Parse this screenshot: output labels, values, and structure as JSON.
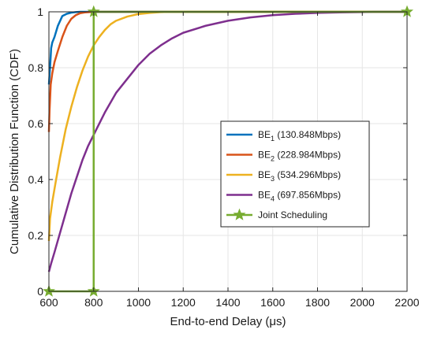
{
  "chart_data": {
    "type": "line",
    "xlabel": "End-to-end Delay (μs)",
    "ylabel": "Cumulative Distribution Function (CDF)",
    "xlim": [
      600,
      2200
    ],
    "ylim": [
      0,
      1
    ],
    "xticks": [
      "600",
      "800",
      "1000",
      "1200",
      "1400",
      "1600",
      "1800",
      "2000",
      "2200"
    ],
    "yticks": [
      "0",
      "0.2",
      "0.4",
      "0.6",
      "0.8",
      "1"
    ],
    "grid": true,
    "legend_position": "center-right",
    "series": [
      {
        "name": "BE1",
        "name_base": "BE",
        "name_sub": "1",
        "name_rate": "(130.848Mbps)",
        "color": "#0072BD",
        "marker": "none",
        "x": [
          600,
          605,
          610,
          615,
          625,
          640,
          660,
          680,
          700,
          720,
          740,
          760,
          2200
        ],
        "y": [
          0.74,
          0.8,
          0.87,
          0.89,
          0.91,
          0.95,
          0.985,
          0.993,
          0.997,
          0.999,
          1.0,
          1.0,
          1.0
        ]
      },
      {
        "name": "BE2",
        "name_base": "BE",
        "name_sub": "2",
        "name_rate": "(228.984Mbps)",
        "color": "#D95319",
        "marker": "none",
        "x": [
          600,
          603,
          608,
          615,
          625,
          640,
          660,
          680,
          700,
          720,
          740,
          760,
          780,
          800,
          820,
          2200
        ],
        "y": [
          0.57,
          0.65,
          0.74,
          0.78,
          0.82,
          0.86,
          0.91,
          0.95,
          0.975,
          0.988,
          0.995,
          0.998,
          0.999,
          1.0,
          1.0,
          1.0
        ]
      },
      {
        "name": "BE3",
        "name_base": "BE",
        "name_sub": "3",
        "name_rate": "(534.296Mbps)",
        "color": "#EDB120",
        "marker": "none",
        "x": [
          600,
          605,
          615,
          630,
          650,
          675,
          700,
          725,
          750,
          775,
          800,
          825,
          850,
          875,
          900,
          950,
          1000,
          1050,
          1100,
          1150,
          1200,
          2200
        ],
        "y": [
          0.18,
          0.26,
          0.32,
          0.39,
          0.48,
          0.58,
          0.66,
          0.73,
          0.79,
          0.84,
          0.88,
          0.91,
          0.935,
          0.955,
          0.968,
          0.983,
          0.992,
          0.996,
          0.999,
          1.0,
          1.0,
          1.0
        ]
      },
      {
        "name": "BE4",
        "name_base": "BE",
        "name_sub": "4",
        "name_rate": "(697.856Mbps)",
        "color": "#7E2F8E",
        "marker": "none",
        "x": [
          600,
          610,
          625,
          650,
          675,
          700,
          725,
          750,
          775,
          800,
          850,
          900,
          950,
          1000,
          1050,
          1100,
          1150,
          1200,
          1300,
          1400,
          1500,
          1600,
          1700,
          1800,
          1900,
          2000,
          2050,
          2200
        ],
        "y": [
          0.07,
          0.1,
          0.14,
          0.21,
          0.28,
          0.35,
          0.41,
          0.47,
          0.52,
          0.56,
          0.64,
          0.71,
          0.76,
          0.81,
          0.85,
          0.88,
          0.905,
          0.925,
          0.95,
          0.968,
          0.98,
          0.988,
          0.993,
          0.996,
          0.998,
          0.999,
          1.0,
          1.0
        ]
      },
      {
        "name": "Joint Scheduling",
        "name_base": "Joint Scheduling",
        "name_sub": "",
        "name_rate": "",
        "color": "#77AC30",
        "marker": "star",
        "x": [
          600,
          800,
          800,
          2200
        ],
        "y": [
          0,
          0,
          1,
          1
        ]
      }
    ]
  }
}
